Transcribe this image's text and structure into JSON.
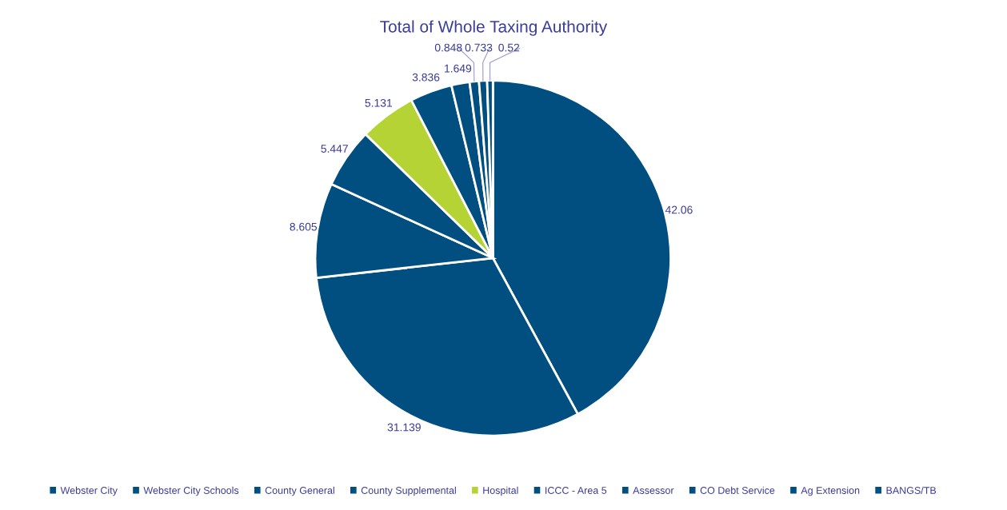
{
  "chart_data": {
    "type": "pie",
    "title": "Total of Whole Taxing Authority",
    "categories": [
      "Webster City",
      "Webster City Schools",
      "County General",
      "County Supplemental",
      "Hospital",
      "ICCC - Area 5",
      "Assessor",
      "CO Debt Service",
      "Ag Extension",
      "BANGS/TB"
    ],
    "values": [
      42.06,
      31.139,
      8.605,
      5.447,
      5.131,
      3.836,
      1.649,
      0.848,
      0.733,
      0.52
    ],
    "colors": [
      "#004f80",
      "#004f80",
      "#004f80",
      "#004f80",
      "#b5d334",
      "#004f80",
      "#004f80",
      "#004f80",
      "#004f80",
      "#004f80"
    ],
    "data_labels": true,
    "legend": "bottom"
  }
}
